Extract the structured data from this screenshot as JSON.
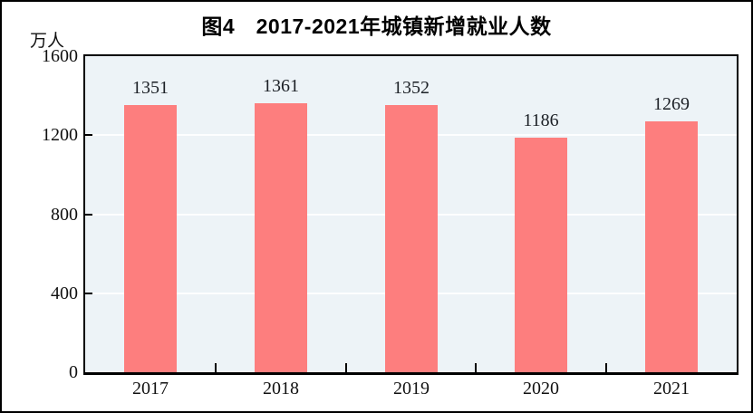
{
  "chart_data": {
    "type": "bar",
    "title": "图4　2017-2021年城镇新增就业人数",
    "unit_label": "万人",
    "categories": [
      "2017",
      "2018",
      "2019",
      "2020",
      "2021"
    ],
    "values": [
      1351,
      1361,
      1352,
      1186,
      1269
    ],
    "data_labels": [
      "1351",
      "1361",
      "1352",
      "1186",
      "1269"
    ],
    "yticks": [
      0,
      400,
      800,
      1200,
      1600
    ],
    "ylim": [
      0,
      1600
    ],
    "xlabel": "",
    "ylabel": "万人",
    "grid": true,
    "legend": "none",
    "bar_color": "#FD7E7E",
    "plot_background": "#EDF3F7",
    "gridline_color": "#FDFEFF",
    "axis_color": "#000000"
  }
}
